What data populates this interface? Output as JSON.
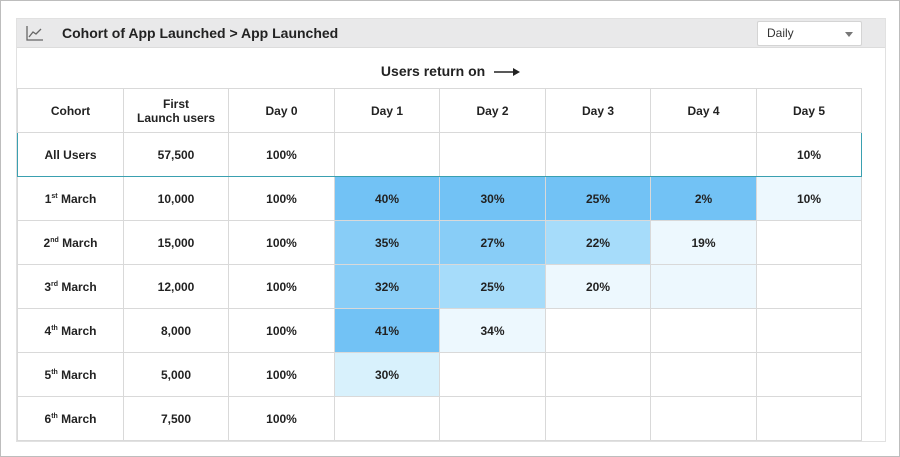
{
  "header": {
    "title": "Cohort of App Launched > App Launched",
    "icon": "line-chart-icon",
    "frequency_select": "Daily"
  },
  "table": {
    "caption": "Users return on",
    "columns": [
      "Cohort",
      "First Launch users",
      "Day 0",
      "Day 1",
      "Day 2",
      "Day 3",
      "Day 4",
      "Day 5"
    ],
    "first_launch_header_line1": "First",
    "first_launch_header_line2": "Launch users",
    "rows": [
      {
        "cohort": "All Users",
        "day_num": "",
        "suffix": "",
        "month": "",
        "users": "57,500",
        "days": [
          "100%",
          "",
          "",
          "",
          "",
          "10%"
        ],
        "colors": [
          "",
          "",
          "",
          "",
          "",
          ""
        ]
      },
      {
        "cohort": "",
        "day_num": "1",
        "suffix": "st",
        "month": "March",
        "users": "10,000",
        "days": [
          "100%",
          "40%",
          "30%",
          "25%",
          "2%",
          "10%"
        ],
        "colors": [
          "",
          "#72c2f5",
          "#72c2f5",
          "#72c2f5",
          "#72c2f5",
          "#edf8fe"
        ]
      },
      {
        "cohort": "",
        "day_num": "2",
        "suffix": "nd",
        "month": "March",
        "users": "15,000",
        "days": [
          "100%",
          "35%",
          "27%",
          "22%",
          "19%",
          ""
        ],
        "colors": [
          "",
          "#88cdf7",
          "#88cdf7",
          "#a6dcfa",
          "#edf8fe",
          ""
        ]
      },
      {
        "cohort": "",
        "day_num": "3",
        "suffix": "rd",
        "month": "March",
        "users": "12,000",
        "days": [
          "100%",
          "32%",
          "25%",
          "20%",
          "",
          ""
        ],
        "colors": [
          "",
          "#88cdf7",
          "#a6dcfa",
          "#edf8fe",
          "#edf8fe",
          ""
        ]
      },
      {
        "cohort": "",
        "day_num": "4",
        "suffix": "th",
        "month": "March",
        "users": "8,000",
        "days": [
          "100%",
          "41%",
          "34%",
          "",
          "",
          ""
        ],
        "colors": [
          "",
          "#72c2f5",
          "#edf8fe",
          "",
          "",
          ""
        ]
      },
      {
        "cohort": "",
        "day_num": "5",
        "suffix": "th",
        "month": "March",
        "users": "5,000",
        "days": [
          "100%",
          "30%",
          "",
          "",
          "",
          ""
        ],
        "colors": [
          "",
          "#d8f1fc",
          "",
          "",
          "",
          ""
        ]
      },
      {
        "cohort": "",
        "day_num": "6",
        "suffix": "th",
        "month": "March",
        "users": "7,500",
        "days": [
          "100%",
          "",
          "",
          "",
          "",
          ""
        ],
        "colors": [
          "",
          "",
          "",
          "",
          "",
          ""
        ]
      }
    ]
  }
}
